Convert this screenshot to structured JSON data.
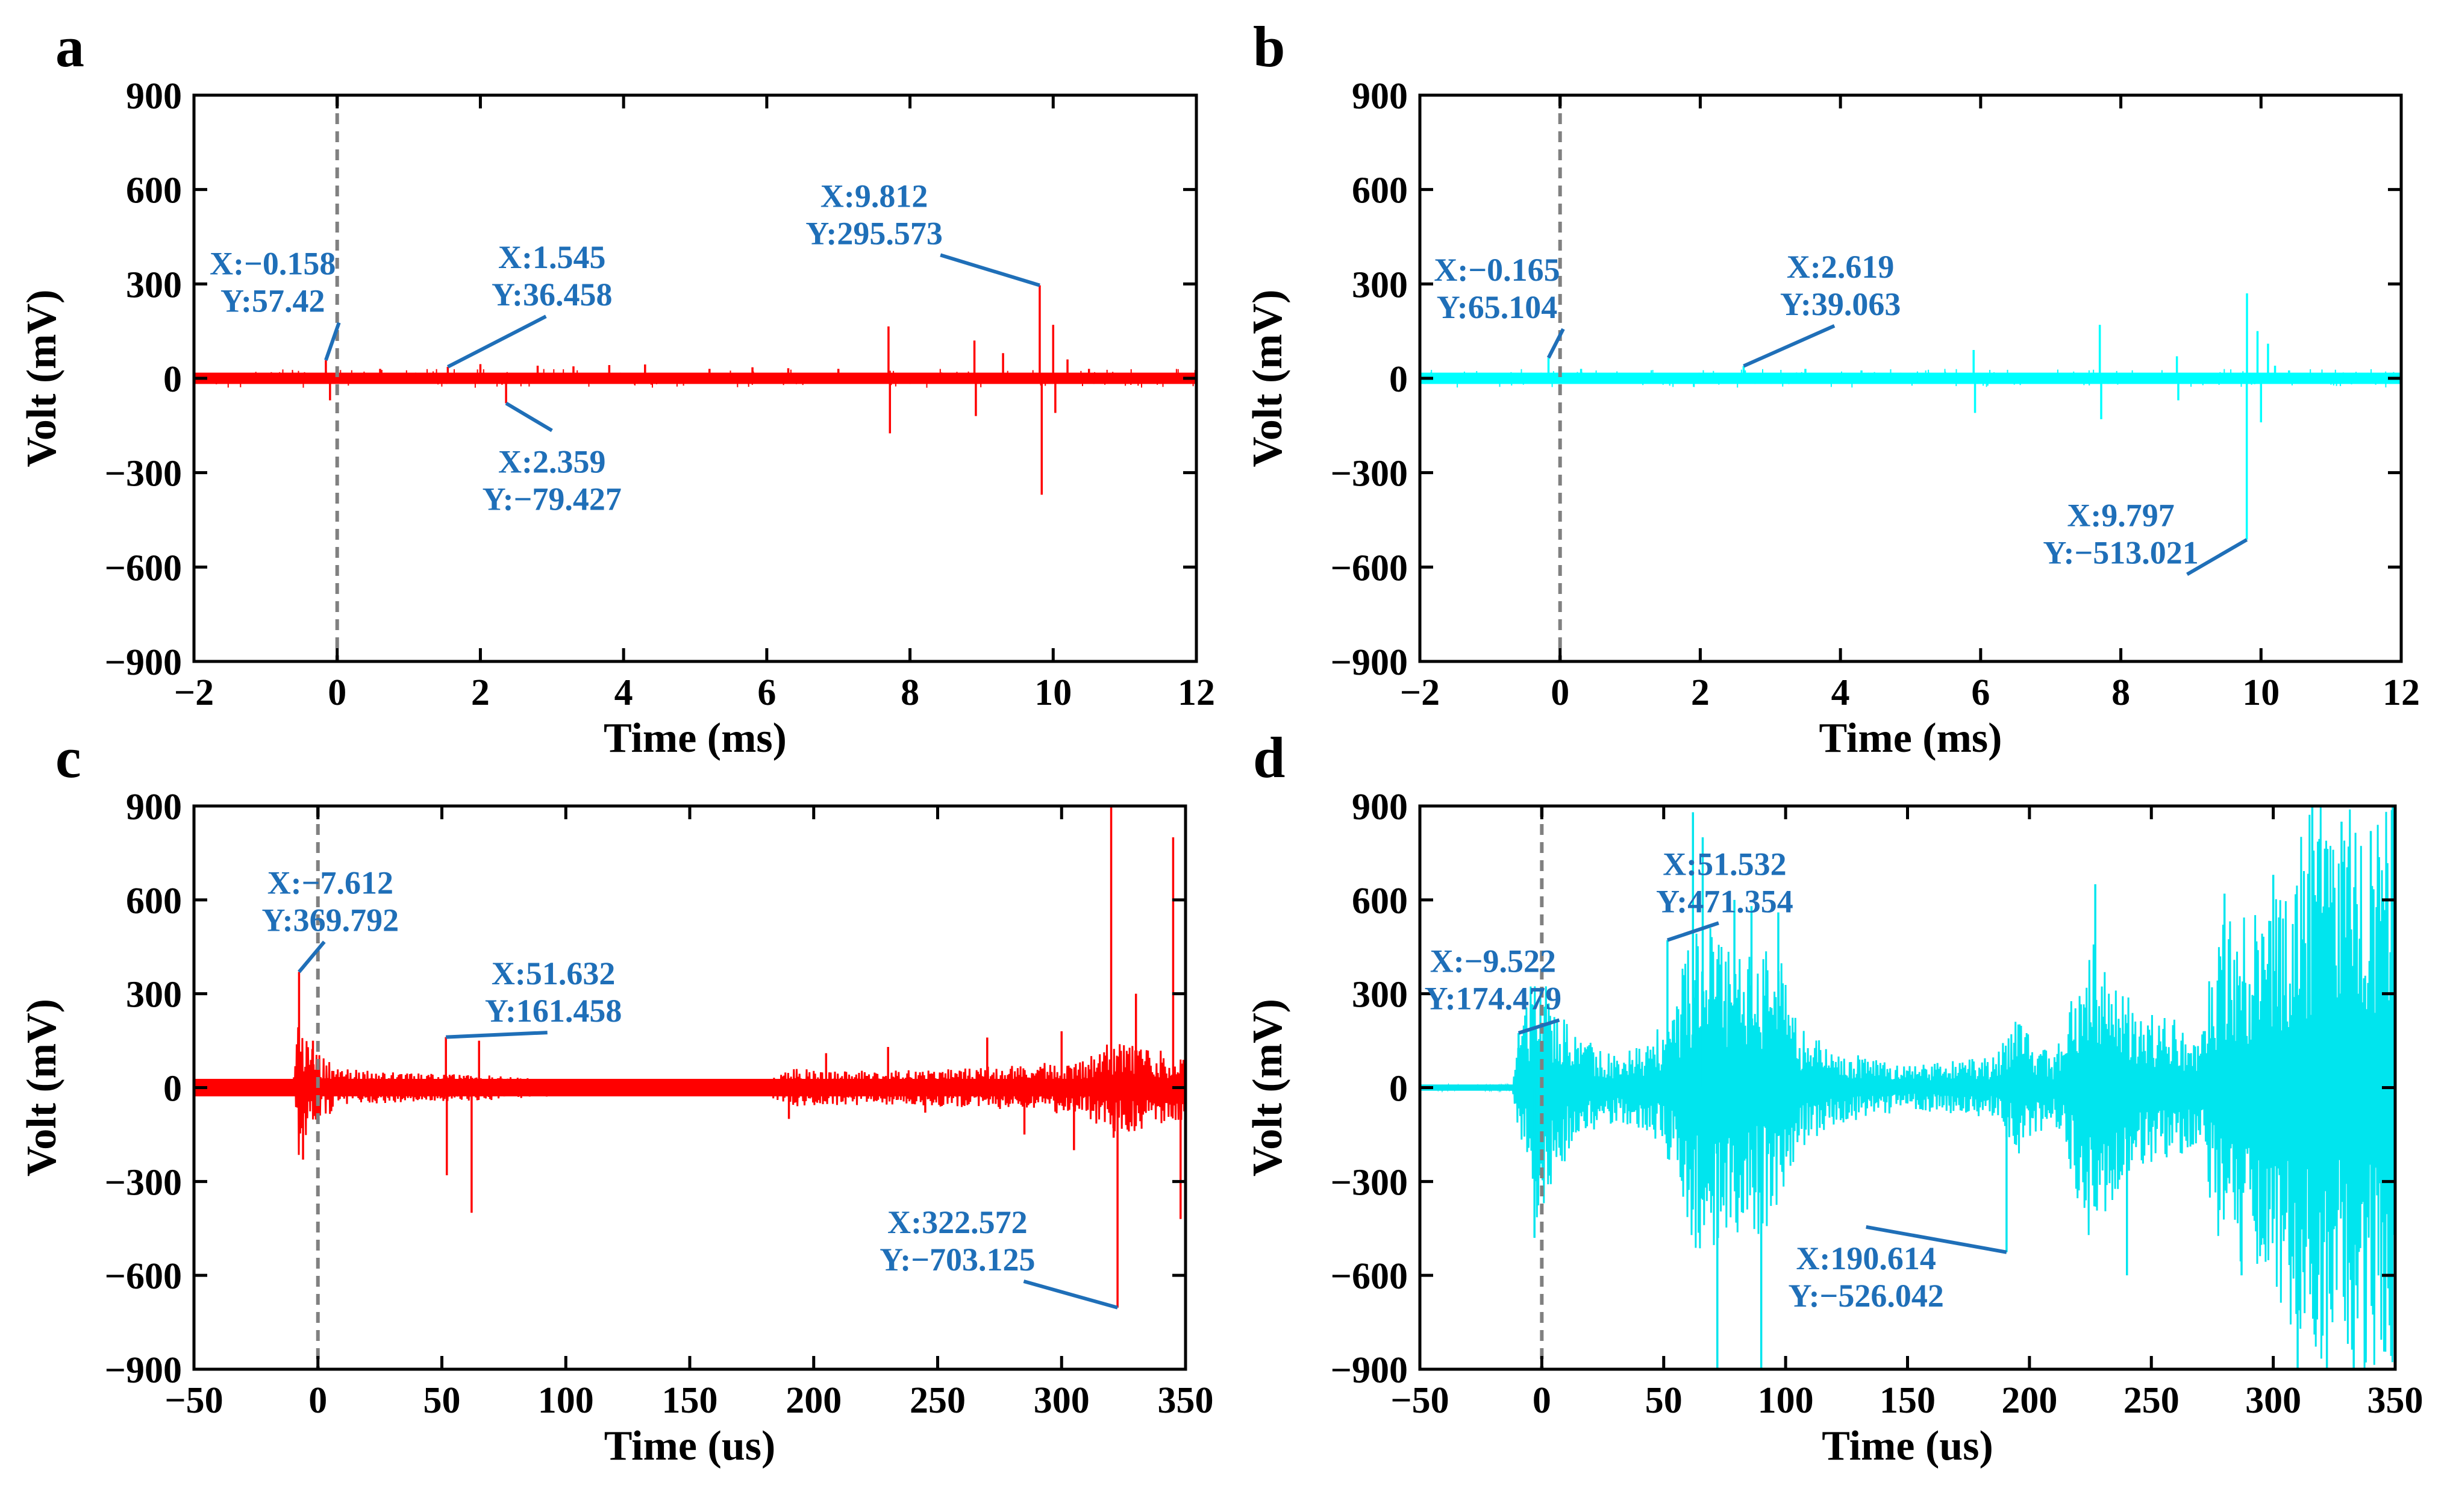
{
  "chart_data": [
    {
      "panel": "a",
      "type": "line",
      "xlabel": "Time (ms)",
      "ylabel": "Volt (mV)",
      "xlim": [
        -2,
        12
      ],
      "ylim": [
        -900,
        900
      ],
      "xticks": [
        -2,
        0,
        2,
        4,
        6,
        8,
        10,
        12
      ],
      "yticks": [
        900,
        600,
        300,
        0,
        -300,
        -600,
        -900
      ],
      "xtick_labels": [
        "−2",
        "0",
        "2",
        "4",
        "6",
        "8",
        "10",
        "12"
      ],
      "ytick_labels": [
        "900",
        "600",
        "300",
        "0",
        "−300",
        "−600",
        "−900"
      ],
      "trigger_line_x": 0,
      "series_color": "#ff0000",
      "trace_style": "thick",
      "baseline_halfwidth": 18,
      "spikes": [
        [
          -0.158,
          57.42
        ],
        [
          -0.1,
          -70
        ],
        [
          0.6,
          30
        ],
        [
          1.545,
          36.458
        ],
        [
          2.0,
          45
        ],
        [
          2.359,
          -79.427
        ],
        [
          2.8,
          40
        ],
        [
          3.3,
          38
        ],
        [
          3.8,
          42
        ],
        [
          4.3,
          44
        ],
        [
          5.2,
          30
        ],
        [
          5.8,
          35
        ],
        [
          6.3,
          32
        ],
        [
          7.0,
          30
        ],
        [
          7.7,
          165
        ],
        [
          7.72,
          -175
        ],
        [
          8.9,
          120
        ],
        [
          8.92,
          -120
        ],
        [
          9.3,
          80
        ],
        [
          9.812,
          295.573
        ],
        [
          9.84,
          -370
        ],
        [
          10.0,
          170
        ],
        [
          10.03,
          -110
        ],
        [
          10.2,
          60
        ],
        [
          10.5,
          30
        ]
      ],
      "annotations": [
        {
          "x_label": "X:−0.158",
          "y_label": "Y:57.42",
          "x": -0.158,
          "y": 57.42,
          "text_x": -0.9,
          "text_y": 330
        },
        {
          "x_label": "X:1.545",
          "y_label": "Y:36.458",
          "x": 1.545,
          "y": 36.458,
          "text_x": 3.0,
          "text_y": 350
        },
        {
          "x_label": "X:2.359",
          "y_label": "Y:−79.427",
          "x": 2.359,
          "y": -79.427,
          "text_x": 3.0,
          "text_y": -300
        },
        {
          "x_label": "X:9.812",
          "y_label": "Y:295.573",
          "x": 9.812,
          "y": 295.573,
          "text_x": 7.5,
          "text_y": 545
        }
      ]
    },
    {
      "panel": "b",
      "type": "line",
      "xlabel": "Time (ms)",
      "ylabel": "Volt (mV)",
      "xlim": [
        -2,
        12
      ],
      "ylim": [
        -900,
        900
      ],
      "xticks": [
        -2,
        0,
        2,
        4,
        6,
        8,
        10,
        12
      ],
      "yticks": [
        900,
        600,
        300,
        0,
        -300,
        -600,
        -900
      ],
      "xtick_labels": [
        "−2",
        "0",
        "2",
        "4",
        "6",
        "8",
        "10",
        "12"
      ],
      "ytick_labels": [
        "900",
        "600",
        "300",
        "0",
        "−300",
        "−600",
        "−900"
      ],
      "trigger_line_x": 0,
      "series_color": "#00ffff",
      "trace_style": "thick",
      "baseline_halfwidth": 18,
      "spikes": [
        [
          -0.165,
          65.104
        ],
        [
          0.3,
          30
        ],
        [
          2.619,
          39.063
        ],
        [
          3.5,
          30
        ],
        [
          4.3,
          25
        ],
        [
          5.9,
          90
        ],
        [
          5.92,
          -110
        ],
        [
          7.7,
          170
        ],
        [
          7.72,
          -130
        ],
        [
          8.8,
          70
        ],
        [
          8.82,
          -70
        ],
        [
          9.797,
          -513.021
        ],
        [
          9.8,
          270
        ],
        [
          9.95,
          150
        ],
        [
          10.0,
          -140
        ],
        [
          10.1,
          110
        ],
        [
          10.2,
          40
        ],
        [
          10.4,
          25
        ]
      ],
      "annotations": [
        {
          "x_label": "X:−0.165",
          "y_label": "Y:65.104",
          "x": -0.165,
          "y": 65.104,
          "text_x": -0.9,
          "text_y": 310
        },
        {
          "x_label": "X:2.619",
          "y_label": "Y:39.063",
          "x": 2.619,
          "y": 39.063,
          "text_x": 4.0,
          "text_y": 320
        },
        {
          "x_label": "X:9.797",
          "y_label": "Y:−513.021",
          "x": 9.797,
          "y": -513.021,
          "text_x": 8.0,
          "text_y": -470
        }
      ]
    },
    {
      "panel": "c",
      "type": "line",
      "xlabel": "Time (us)",
      "ylabel": "Volt (mV)",
      "xlim": [
        -50,
        350
      ],
      "ylim": [
        -900,
        900
      ],
      "xticks": [
        -50,
        0,
        50,
        100,
        150,
        200,
        250,
        300,
        350
      ],
      "yticks": [
        900,
        600,
        300,
        0,
        -300,
        -600,
        -900
      ],
      "xtick_labels": [
        "−50",
        "0",
        "50",
        "100",
        "150",
        "200",
        "250",
        "300",
        "350"
      ],
      "ytick_labels": [
        "900",
        "600",
        "300",
        "0",
        "−300",
        "−600",
        "−900"
      ],
      "trigger_line_x": 0,
      "series_color": "#ff0000",
      "trace_style": "thin",
      "baseline_halfwidth": 28,
      "envelope": [
        [
          -50,
          10
        ],
        [
          -10,
          12
        ],
        [
          -8,
          220
        ],
        [
          0,
          110
        ],
        [
          10,
          60
        ],
        [
          40,
          45
        ],
        [
          70,
          40
        ],
        [
          100,
          25
        ],
        [
          180,
          20
        ],
        [
          190,
          60
        ],
        [
          230,
          55
        ],
        [
          280,
          70
        ],
        [
          310,
          90
        ],
        [
          318,
          160
        ],
        [
          330,
          140
        ],
        [
          350,
          100
        ]
      ],
      "spikes": [
        [
          -7.612,
          369.792
        ],
        [
          -6,
          -230
        ],
        [
          -2,
          150
        ],
        [
          51.632,
          161.458
        ],
        [
          52,
          -280
        ],
        [
          62,
          -400
        ],
        [
          65,
          150
        ],
        [
          190,
          -100
        ],
        [
          205,
          110
        ],
        [
          230,
          130
        ],
        [
          245,
          -80
        ],
        [
          270,
          160
        ],
        [
          285,
          -150
        ],
        [
          300,
          180
        ],
        [
          305,
          -200
        ],
        [
          320,
          900
        ],
        [
          321,
          -160
        ],
        [
          322.572,
          -703.125
        ],
        [
          330,
          300
        ],
        [
          345,
          800
        ],
        [
          348,
          -420
        ]
      ],
      "annotations": [
        {
          "x_label": "X:−7.612",
          "y_label": "Y:369.792",
          "x": -7.612,
          "y": 369.792,
          "text_x": 5,
          "text_y": 620
        },
        {
          "x_label": "X:51.632",
          "y_label": "Y:161.458",
          "x": 51.632,
          "y": 161.458,
          "text_x": 95,
          "text_y": 330
        },
        {
          "x_label": "X:322.572",
          "y_label": "Y:−703.125",
          "x": 322.572,
          "y": -703.125,
          "text_x": 258,
          "text_y": -465
        }
      ]
    },
    {
      "panel": "d",
      "type": "line",
      "xlabel": "Time (us)",
      "ylabel": "Volt (mV)",
      "xlim": [
        -50,
        350
      ],
      "ylim": [
        -900,
        900
      ],
      "xticks": [
        -50,
        0,
        50,
        100,
        150,
        200,
        250,
        300,
        350
      ],
      "yticks": [
        900,
        600,
        300,
        0,
        -300,
        -600,
        -900
      ],
      "xtick_labels": [
        "−50",
        "0",
        "50",
        "100",
        "150",
        "200",
        "250",
        "300",
        "350"
      ],
      "ytick_labels": [
        "900",
        "600",
        "300",
        "0",
        "−300",
        "−600",
        "−900"
      ],
      "trigger_line_x": 0,
      "series_color": "#00e5ee",
      "trace_style": "thin",
      "baseline_halfwidth": 10,
      "envelope": [
        [
          -50,
          8
        ],
        [
          -12,
          10
        ],
        [
          -9,
          180
        ],
        [
          -2,
          420
        ],
        [
          5,
          300
        ],
        [
          15,
          160
        ],
        [
          30,
          110
        ],
        [
          45,
          150
        ],
        [
          55,
          300
        ],
        [
          65,
          600
        ],
        [
          75,
          450
        ],
        [
          85,
          480
        ],
        [
          95,
          500
        ],
        [
          105,
          200
        ],
        [
          120,
          120
        ],
        [
          150,
          70
        ],
        [
          185,
          100
        ],
        [
          195,
          220
        ],
        [
          210,
          100
        ],
        [
          225,
          500
        ],
        [
          232,
          420
        ],
        [
          245,
          250
        ],
        [
          270,
          200
        ],
        [
          280,
          580
        ],
        [
          290,
          550
        ],
        [
          300,
          650
        ],
        [
          315,
          900
        ],
        [
          330,
          900
        ],
        [
          345,
          900
        ],
        [
          350,
          900
        ]
      ],
      "spikes": [
        [
          -9.522,
          174.479
        ],
        [
          -3,
          -480
        ],
        [
          51.532,
          471.354
        ],
        [
          62,
          880
        ],
        [
          66,
          800
        ],
        [
          72,
          -900
        ],
        [
          79,
          600
        ],
        [
          86,
          580
        ],
        [
          90,
          -900
        ],
        [
          97,
          560
        ],
        [
          190.614,
          -526.042
        ],
        [
          227,
          650
        ],
        [
          240,
          -600
        ],
        [
          280,
          620
        ],
        [
          287,
          -600
        ],
        [
          300,
          680
        ],
        [
          310,
          -900
        ],
        [
          316,
          900
        ],
        [
          322,
          -900
        ],
        [
          328,
          850
        ],
        [
          333,
          -900
        ],
        [
          340,
          820
        ],
        [
          349,
          900
        ]
      ],
      "annotations": [
        {
          "x_label": "X:−9.522",
          "y_label": "Y:174.479",
          "x": -9.522,
          "y": 174.479,
          "text_x": -20,
          "text_y": 370
        },
        {
          "x_label": "X:51.532",
          "y_label": "Y:471.354",
          "x": 51.532,
          "y": 471.354,
          "text_x": 75,
          "text_y": 680
        },
        {
          "x_label": "X:190.614",
          "y_label": "Y:−526.042",
          "x": 190.614,
          "y": -526.042,
          "text_x": 133,
          "text_y": -580
        }
      ]
    }
  ]
}
